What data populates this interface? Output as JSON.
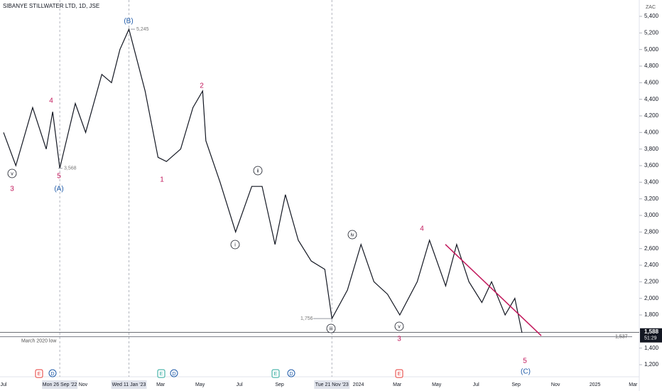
{
  "chart_data": {
    "type": "line",
    "title": "SIBANYE STILLWATER LTD, 1D, JSE",
    "currency": "ZAC",
    "color": "#131722",
    "x": [
      "2022-07-01",
      "2022-07-20",
      "2022-08-15",
      "2022-09-05",
      "2022-09-15",
      "2022-09-26",
      "2022-10-20",
      "2022-11-05",
      "2022-11-30",
      "2022-12-15",
      "2022-12-28",
      "2023-01-11",
      "2023-02-05",
      "2023-02-25",
      "2023-03-10",
      "2023-04-01",
      "2023-04-20",
      "2023-05-05",
      "2023-05-10",
      "2023-06-01",
      "2023-06-25",
      "2023-07-20",
      "2023-08-05",
      "2023-08-25",
      "2023-09-10",
      "2023-09-30",
      "2023-10-20",
      "2023-11-10",
      "2023-11-21",
      "2023-12-15",
      "2024-01-05",
      "2024-01-25",
      "2024-02-15",
      "2024-03-05",
      "2024-04-01",
      "2024-04-20",
      "2024-05-15",
      "2024-06-01",
      "2024-06-20",
      "2024-07-10",
      "2024-07-25",
      "2024-08-15",
      "2024-08-30",
      "2024-09-10"
    ],
    "values": [
      4000,
      3600,
      4300,
      3800,
      4250,
      3568,
      4350,
      4000,
      4700,
      4600,
      5000,
      5245,
      4500,
      3700,
      3650,
      3800,
      4300,
      4500,
      3900,
      3400,
      2800,
      3350,
      3350,
      2650,
      3250,
      2700,
      2450,
      2350,
      1756,
      2100,
      2650,
      2200,
      2050,
      1800,
      2200,
      2700,
      2150,
      2650,
      2200,
      1950,
      2200,
      1800,
      2000,
      1588
    ],
    "ylim": [
      1200,
      5400
    ],
    "yticks": [
      {
        "value": 5400,
        "label": "5,400"
      },
      {
        "value": 5200,
        "label": "5,200"
      },
      {
        "value": 5000,
        "label": "5,000"
      },
      {
        "value": 4800,
        "label": "4,800"
      },
      {
        "value": 4600,
        "label": "4,600"
      },
      {
        "value": 4400,
        "label": "4,400"
      },
      {
        "value": 4200,
        "label": "4,200"
      },
      {
        "value": 4000,
        "label": "4,000"
      },
      {
        "value": 3800,
        "label": "3,800"
      },
      {
        "value": 3600,
        "label": "3,600"
      },
      {
        "value": 3400,
        "label": "3,400"
      },
      {
        "value": 3200,
        "label": "3,200"
      },
      {
        "value": 3000,
        "label": "3,000"
      },
      {
        "value": 2800,
        "label": "2,800"
      },
      {
        "value": 2600,
        "label": "2,600"
      },
      {
        "value": 2400,
        "label": "2,400"
      },
      {
        "value": 2200,
        "label": "2,200"
      },
      {
        "value": 2000,
        "label": "2,000"
      },
      {
        "value": 1800,
        "label": "1,800"
      },
      {
        "value": 1400,
        "label": "1,400"
      },
      {
        "value": 1200,
        "label": "1,200"
      }
    ],
    "xticks": [
      {
        "value": "2022-07-01",
        "label": "Jul"
      },
      {
        "value": "2022-09-26",
        "label": "Mon 26 Sep '22"
      },
      {
        "value": "2022-11-01",
        "label": "Nov"
      },
      {
        "value": "2023-01-11",
        "label": "Wed 11 Jan '23"
      },
      {
        "value": "2023-03-01",
        "label": "Mar"
      },
      {
        "value": "2023-05-01",
        "label": "May"
      },
      {
        "value": "2023-07-01",
        "label": "Jul"
      },
      {
        "value": "2023-09-01",
        "label": "Sep"
      },
      {
        "value": "2023-11-21",
        "label": "Tue 21 Nov '23"
      },
      {
        "value": "2024-01-01",
        "label": "2024"
      },
      {
        "value": "2024-03-01",
        "label": "Mar"
      },
      {
        "value": "2024-05-01",
        "label": "May"
      },
      {
        "value": "2024-07-01",
        "label": "Jul"
      },
      {
        "value": "2024-09-01",
        "label": "Sep"
      },
      {
        "value": "2024-11-01",
        "label": "Nov"
      },
      {
        "value": "2025-01-01",
        "label": "2025"
      },
      {
        "value": "2025-03-01",
        "label": "Mar"
      }
    ],
    "price_labels": [
      {
        "value": 5245,
        "label": "5,245"
      },
      {
        "value": 3568,
        "label": "3,568"
      },
      {
        "value": 1756,
        "label": "1,756"
      }
    ],
    "support": {
      "value": 1537,
      "label": "1,537",
      "name": "March 2020 low"
    },
    "last": {
      "value": 1588,
      "label": "1,588",
      "countdown": "51:29"
    },
    "trendline": [
      2650,
      1550
    ],
    "wave_labels": [
      "v",
      "3",
      "4",
      "5",
      "(A)",
      "(B)",
      "1",
      "2",
      "ii",
      "i",
      "iv",
      "4",
      "iii",
      "v",
      "3",
      "5",
      "(C)"
    ],
    "events": [
      "E",
      "D",
      "E",
      "D",
      "E",
      "D",
      "E"
    ]
  }
}
